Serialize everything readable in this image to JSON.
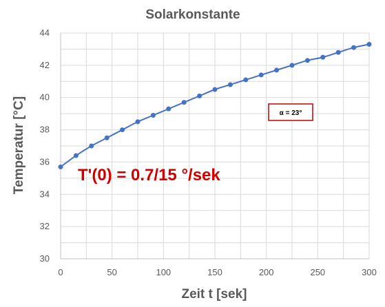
{
  "chart_data": {
    "type": "line",
    "title": "Solarkonstante",
    "xlabel": "Zeit t [sek]",
    "ylabel": "Temperatur [°C]",
    "xlim": [
      0,
      300
    ],
    "ylim": [
      30,
      44
    ],
    "xticks": [
      "0",
      "50",
      "100",
      "150",
      "200",
      "250",
      "300"
    ],
    "yticks": [
      "30",
      "32",
      "34",
      "36",
      "38",
      "40",
      "42",
      "44"
    ],
    "grid": true,
    "series": [
      {
        "color": "#4472c4",
        "x": [
          0,
          15,
          30,
          45,
          60,
          75,
          90,
          105,
          120,
          135,
          150,
          165,
          180,
          195,
          210,
          225,
          240,
          255,
          270,
          285,
          300
        ],
        "y": [
          35.7,
          36.4,
          37.0,
          37.5,
          38.0,
          38.5,
          38.9,
          39.3,
          39.7,
          40.1,
          40.5,
          40.8,
          41.1,
          41.4,
          41.7,
          42.0,
          42.3,
          42.5,
          42.8,
          43.1,
          43.3
        ]
      }
    ],
    "annotations": [
      {
        "text": "T'(0) = 0.7/15 °/sek",
        "color": "#d00000"
      },
      {
        "text": "α = 23°",
        "color": "#c00000"
      }
    ]
  }
}
